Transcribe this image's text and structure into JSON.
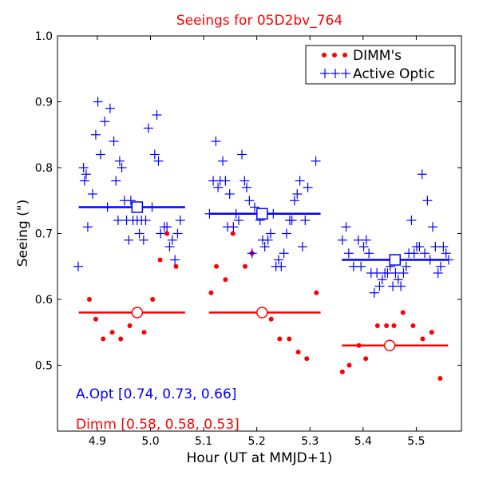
{
  "chart_data": {
    "type": "scatter",
    "title": "Seeings for 05D2bv_764",
    "xlabel": "Hour (UT at MMJD+1)",
    "ylabel": "Seeing (\")",
    "xlim": [
      4.825,
      5.585
    ],
    "ylim": [
      0.4,
      1.0
    ],
    "xticks": [
      "4.9",
      "5.0",
      "5.1",
      "5.2",
      "5.3",
      "5.4",
      "5.5"
    ],
    "xtick_values": [
      4.9,
      5.0,
      5.1,
      5.2,
      5.3,
      5.4,
      5.5
    ],
    "yticks": [
      "0.5",
      "0.6",
      "0.7",
      "0.8",
      "0.9",
      "1.0"
    ],
    "ytick_values": [
      0.5,
      0.6,
      0.7,
      0.8,
      0.9,
      1.0
    ],
    "legend_position": "top-right",
    "colors": {
      "active_optic": "#0000ff",
      "dimm": "#ff0000"
    },
    "series": [
      {
        "name": "DIMM's",
        "marker": "dot",
        "color": "#ff0000",
        "points": [
          [
            4.885,
            0.6
          ],
          [
            4.897,
            0.57
          ],
          [
            4.911,
            0.54
          ],
          [
            4.928,
            0.55
          ],
          [
            4.944,
            0.54
          ],
          [
            4.961,
            0.56
          ],
          [
            4.988,
            0.55
          ],
          [
            5.004,
            0.6
          ],
          [
            5.018,
            0.66
          ],
          [
            5.031,
            0.7
          ],
          [
            5.048,
            0.65
          ],
          [
            5.114,
            0.61
          ],
          [
            5.124,
            0.65
          ],
          [
            5.141,
            0.63
          ],
          [
            5.155,
            0.7
          ],
          [
            5.178,
            0.65
          ],
          [
            5.191,
            0.67
          ],
          [
            5.227,
            0.57
          ],
          [
            5.243,
            0.54
          ],
          [
            5.261,
            0.54
          ],
          [
            5.278,
            0.52
          ],
          [
            5.294,
            0.51
          ],
          [
            5.312,
            0.61
          ],
          [
            5.361,
            0.49
          ],
          [
            5.374,
            0.5
          ],
          [
            5.392,
            0.53
          ],
          [
            5.405,
            0.51
          ],
          [
            5.427,
            0.56
          ],
          [
            5.444,
            0.56
          ],
          [
            5.458,
            0.56
          ],
          [
            5.475,
            0.58
          ],
          [
            5.494,
            0.56
          ],
          [
            5.512,
            0.54
          ],
          [
            5.529,
            0.55
          ],
          [
            5.545,
            0.48
          ]
        ]
      },
      {
        "name": "Active Optic",
        "marker": "plus",
        "color": "#0000ff",
        "points": [
          [
            4.864,
            0.65
          ],
          [
            4.874,
            0.8
          ],
          [
            4.876,
            0.78
          ],
          [
            4.879,
            0.79
          ],
          [
            4.882,
            0.71
          ],
          [
            4.891,
            0.76
          ],
          [
            4.897,
            0.85
          ],
          [
            4.901,
            0.9
          ],
          [
            4.906,
            0.82
          ],
          [
            4.914,
            0.87
          ],
          [
            4.919,
            0.74
          ],
          [
            4.924,
            0.89
          ],
          [
            4.931,
            0.84
          ],
          [
            4.935,
            0.78
          ],
          [
            4.939,
            0.72
          ],
          [
            4.942,
            0.81
          ],
          [
            4.946,
            0.8
          ],
          [
            4.951,
            0.75
          ],
          [
            4.955,
            0.72
          ],
          [
            4.959,
            0.69
          ],
          [
            4.963,
            0.75
          ],
          [
            4.967,
            0.72
          ],
          [
            4.971,
            0.74
          ],
          [
            4.975,
            0.72
          ],
          [
            4.979,
            0.7
          ],
          [
            4.983,
            0.72
          ],
          [
            4.987,
            0.69
          ],
          [
            4.991,
            0.72
          ],
          [
            4.996,
            0.86
          ],
          [
            5.003,
            0.74
          ],
          [
            5.008,
            0.82
          ],
          [
            5.012,
            0.88
          ],
          [
            5.015,
            0.81
          ],
          [
            5.019,
            0.7
          ],
          [
            5.026,
            0.71
          ],
          [
            5.031,
            0.71
          ],
          [
            5.036,
            0.68
          ],
          [
            5.041,
            0.69
          ],
          [
            5.046,
            0.66
          ],
          [
            5.051,
            0.7
          ],
          [
            5.056,
            0.72
          ],
          [
            5.111,
            0.73
          ],
          [
            5.118,
            0.78
          ],
          [
            5.123,
            0.84
          ],
          [
            5.127,
            0.77
          ],
          [
            5.131,
            0.78
          ],
          [
            5.136,
            0.81
          ],
          [
            5.141,
            0.78
          ],
          [
            5.145,
            0.71
          ],
          [
            5.149,
            0.76
          ],
          [
            5.156,
            0.71
          ],
          [
            5.161,
            0.73
          ],
          [
            5.166,
            0.72
          ],
          [
            5.172,
            0.82
          ],
          [
            5.177,
            0.78
          ],
          [
            5.181,
            0.77
          ],
          [
            5.186,
            0.75
          ],
          [
            5.191,
            0.67
          ],
          [
            5.196,
            0.74
          ],
          [
            5.201,
            0.73
          ],
          [
            5.206,
            0.72
          ],
          [
            5.211,
            0.69
          ],
          [
            5.215,
            0.68
          ],
          [
            5.221,
            0.69
          ],
          [
            5.226,
            0.7
          ],
          [
            5.231,
            0.73
          ],
          [
            5.236,
            0.65
          ],
          [
            5.241,
            0.66
          ],
          [
            5.246,
            0.65
          ],
          [
            5.251,
            0.67
          ],
          [
            5.256,
            0.7
          ],
          [
            5.262,
            0.72
          ],
          [
            5.266,
            0.72
          ],
          [
            5.271,
            0.75
          ],
          [
            5.276,
            0.76
          ],
          [
            5.281,
            0.78
          ],
          [
            5.286,
            0.68
          ],
          [
            5.291,
            0.72
          ],
          [
            5.296,
            0.77
          ],
          [
            5.311,
            0.81
          ],
          [
            5.361,
            0.69
          ],
          [
            5.368,
            0.71
          ],
          [
            5.373,
            0.67
          ],
          [
            5.382,
            0.65
          ],
          [
            5.391,
            0.69
          ],
          [
            5.396,
            0.65
          ],
          [
            5.401,
            0.68
          ],
          [
            5.406,
            0.69
          ],
          [
            5.411,
            0.67
          ],
          [
            5.415,
            0.64
          ],
          [
            5.421,
            0.61
          ],
          [
            5.426,
            0.64
          ],
          [
            5.431,
            0.62
          ],
          [
            5.436,
            0.63
          ],
          [
            5.441,
            0.64
          ],
          [
            5.446,
            0.64
          ],
          [
            5.451,
            0.65
          ],
          [
            5.456,
            0.62
          ],
          [
            5.461,
            0.64
          ],
          [
            5.466,
            0.63
          ],
          [
            5.471,
            0.62
          ],
          [
            5.476,
            0.64
          ],
          [
            5.481,
            0.65
          ],
          [
            5.486,
            0.67
          ],
          [
            5.491,
            0.72
          ],
          [
            5.496,
            0.67
          ],
          [
            5.501,
            0.68
          ],
          [
            5.506,
            0.68
          ],
          [
            5.511,
            0.79
          ],
          [
            5.516,
            0.67
          ],
          [
            5.521,
            0.75
          ],
          [
            5.526,
            0.66
          ],
          [
            5.531,
            0.71
          ],
          [
            5.536,
            0.68
          ],
          [
            5.541,
            0.64
          ],
          [
            5.546,
            0.65
          ],
          [
            5.551,
            0.68
          ],
          [
            5.556,
            0.67
          ],
          [
            5.561,
            0.66
          ]
        ]
      }
    ],
    "averages": [
      {
        "series": "Active Optic",
        "marker": "square",
        "x_start": 4.865,
        "x_end": 5.065,
        "x_marker": 4.975,
        "value": 0.74
      },
      {
        "series": "Active Optic",
        "marker": "square",
        "x_start": 5.11,
        "x_end": 5.32,
        "x_marker": 5.21,
        "value": 0.73
      },
      {
        "series": "Active Optic",
        "marker": "square",
        "x_start": 5.36,
        "x_end": 5.56,
        "x_marker": 5.46,
        "value": 0.66
      },
      {
        "series": "DIMM's",
        "marker": "circle",
        "x_start": 4.865,
        "x_end": 5.065,
        "x_marker": 4.975,
        "value": 0.58
      },
      {
        "series": "DIMM's",
        "marker": "circle",
        "x_start": 5.11,
        "x_end": 5.32,
        "x_marker": 5.21,
        "value": 0.58
      },
      {
        "series": "DIMM's",
        "marker": "circle",
        "x_start": 5.36,
        "x_end": 5.56,
        "x_marker": 5.45,
        "value": 0.53
      }
    ],
    "annotations": [
      {
        "text": "A.Opt [0.74, 0.73, 0.66]",
        "color": "#0000ff"
      },
      {
        "text": "Dimm [0.58, 0.58, 0.53]",
        "color": "#ff0000"
      }
    ]
  }
}
